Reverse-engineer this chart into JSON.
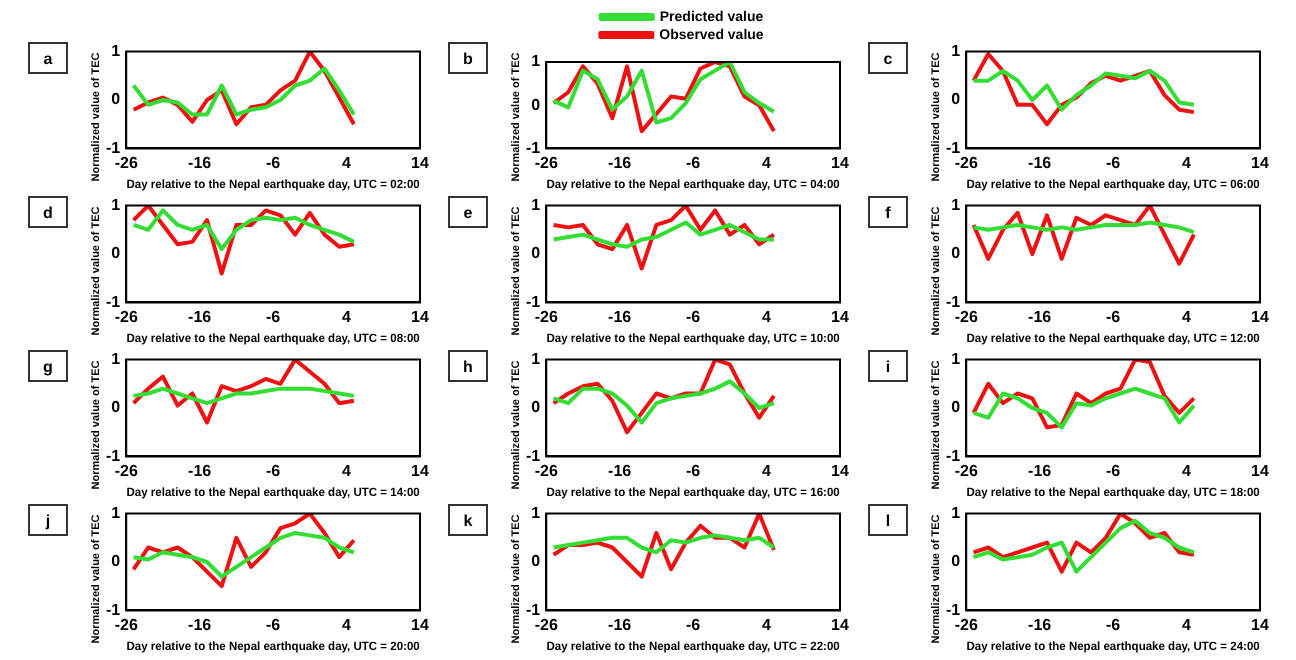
{
  "chart_data": [
    {
      "type": "line",
      "title": "a",
      "xlabel": "Day relative to the Nepal earthquake day, UTC = 02:00",
      "ylabel": "Normalized value of TEC",
      "x": [
        -25,
        -23,
        -21,
        -19,
        -17,
        -15,
        -13,
        -11,
        -9,
        -7,
        -5,
        -3,
        -1,
        1,
        3,
        5
      ],
      "xlim": [
        -26,
        14
      ],
      "xticks": [
        -26,
        -16,
        -6,
        4,
        14
      ],
      "ylim": [
        -1,
        1
      ],
      "yticks": [
        -1,
        0,
        1
      ],
      "legend": false,
      "series": [
        {
          "color": "#33dd33",
          "values": [
            0.3,
            -0.1,
            0,
            -0.05,
            -0.3,
            -0.3,
            0.3,
            -0.3,
            -0.2,
            -0.15,
            0,
            0.3,
            0.4,
            0.65,
            0.2,
            -0.3
          ]
        },
        {
          "color": "#ee1111",
          "values": [
            -0.2,
            -0.05,
            0.05,
            -0.1,
            -0.45,
            0,
            0.2,
            -0.5,
            -0.15,
            -0.1,
            0.2,
            0.4,
            1.0,
            0.6,
            0.05,
            -0.5
          ]
        }
      ]
    },
    {
      "type": "line",
      "title": "b",
      "xlabel": "Day relative to the Nepal earthquake day, UTC = 04:00",
      "ylabel": "Normalized value of TEC",
      "x": [
        -25,
        -23,
        -21,
        -19,
        -17,
        -15,
        -13,
        -11,
        -9,
        -7,
        -5,
        -3,
        -1,
        1,
        3,
        5
      ],
      "xlim": [
        -26,
        14
      ],
      "xticks": [
        -26,
        -16,
        -6,
        4,
        14
      ],
      "ylim": [
        -1,
        1
      ],
      "yticks": [
        -1,
        0,
        1
      ],
      "legend": "top",
      "series": [
        {
          "name": "Predicted value",
          "color": "#33dd33",
          "values": [
            0.1,
            -0.05,
            0.8,
            0.6,
            -0.1,
            0.2,
            0.8,
            -0.4,
            -0.3,
            0.05,
            0.6,
            0.8,
            1.0,
            0.3,
            0.05,
            -0.15
          ]
        },
        {
          "name": "Observed value",
          "color": "#ee1111",
          "values": [
            0.05,
            0.3,
            0.9,
            0.5,
            -0.3,
            0.9,
            -0.6,
            -0.2,
            0.2,
            0.15,
            0.85,
            1.0,
            0.9,
            0.2,
            0,
            -0.6
          ]
        }
      ]
    },
    {
      "type": "line",
      "title": "c",
      "xlabel": "Day relative to the Nepal earthquake day, UTC = 06:00",
      "ylabel": "Normalized value of TEC",
      "x": [
        -25,
        -23,
        -21,
        -19,
        -17,
        -15,
        -13,
        -11,
        -9,
        -7,
        -5,
        -3,
        -1,
        1,
        3,
        5
      ],
      "xlim": [
        -26,
        14
      ],
      "xticks": [
        -26,
        -16,
        -6,
        4,
        14
      ],
      "ylim": [
        -1,
        1
      ],
      "yticks": [
        -1,
        0,
        1
      ],
      "legend": false,
      "series": [
        {
          "color": "#33dd33",
          "values": [
            0.4,
            0.4,
            0.6,
            0.4,
            0,
            0.3,
            -0.2,
            0.1,
            0.3,
            0.55,
            0.5,
            0.45,
            0.6,
            0.4,
            -0.05,
            -0.1
          ]
        },
        {
          "color": "#ee1111",
          "values": [
            0.4,
            0.95,
            0.6,
            -0.1,
            -0.1,
            -0.5,
            -0.1,
            0.05,
            0.35,
            0.5,
            0.4,
            0.5,
            0.6,
            0.1,
            -0.2,
            -0.25
          ]
        }
      ]
    },
    {
      "type": "line",
      "title": "d",
      "xlabel": "Day relative to the Nepal earthquake day, UTC = 08:00",
      "ylabel": "Normalized value of TEC",
      "x": [
        -25,
        -23,
        -21,
        -19,
        -17,
        -15,
        -13,
        -11,
        -9,
        -7,
        -5,
        -3,
        -1,
        1,
        3,
        5
      ],
      "xlim": [
        -26,
        14
      ],
      "xticks": [
        -26,
        -16,
        -6,
        4,
        14
      ],
      "ylim": [
        -1,
        1
      ],
      "yticks": [
        -1,
        0,
        1
      ],
      "legend": false,
      "series": [
        {
          "color": "#33dd33",
          "values": [
            0.6,
            0.5,
            0.9,
            0.6,
            0.5,
            0.6,
            0.1,
            0.5,
            0.7,
            0.75,
            0.7,
            0.75,
            0.6,
            0.5,
            0.4,
            0.25
          ]
        },
        {
          "color": "#ee1111",
          "values": [
            0.7,
            1.0,
            0.6,
            0.2,
            0.25,
            0.7,
            -0.4,
            0.6,
            0.6,
            0.9,
            0.8,
            0.4,
            0.85,
            0.4,
            0.15,
            0.2
          ]
        }
      ]
    },
    {
      "type": "line",
      "title": "e",
      "xlabel": "Day relative to the Nepal earthquake day, UTC = 10:00",
      "ylabel": "Normalized value of TEC",
      "x": [
        -25,
        -23,
        -21,
        -19,
        -17,
        -15,
        -13,
        -11,
        -9,
        -7,
        -5,
        -3,
        -1,
        1,
        3,
        5
      ],
      "xlim": [
        -26,
        14
      ],
      "xticks": [
        -26,
        -16,
        -6,
        4,
        14
      ],
      "ylim": [
        -1,
        1
      ],
      "yticks": [
        -1,
        0,
        1
      ],
      "legend": false,
      "series": [
        {
          "color": "#33dd33",
          "values": [
            0.3,
            0.35,
            0.4,
            0.3,
            0.2,
            0.15,
            0.3,
            0.35,
            0.5,
            0.65,
            0.4,
            0.5,
            0.6,
            0.45,
            0.3,
            0.3
          ]
        },
        {
          "color": "#ee1111",
          "values": [
            0.6,
            0.55,
            0.6,
            0.2,
            0.1,
            0.6,
            -0.3,
            0.6,
            0.7,
            1.0,
            0.5,
            0.9,
            0.4,
            0.6,
            0.2,
            0.4
          ]
        }
      ]
    },
    {
      "type": "line",
      "title": "f",
      "xlabel": "Day relative to the Nepal earthquake day, UTC = 12:00",
      "ylabel": "Normalized value of TEC",
      "x": [
        -25,
        -23,
        -21,
        -19,
        -17,
        -15,
        -13,
        -11,
        -9,
        -7,
        -5,
        -3,
        -1,
        1,
        3,
        5
      ],
      "xlim": [
        -26,
        14
      ],
      "xticks": [
        -26,
        -16,
        -6,
        4,
        14
      ],
      "ylim": [
        -1,
        1
      ],
      "yticks": [
        -1,
        0,
        1
      ],
      "legend": false,
      "series": [
        {
          "color": "#33dd33",
          "values": [
            0.55,
            0.5,
            0.55,
            0.6,
            0.55,
            0.5,
            0.55,
            0.5,
            0.55,
            0.6,
            0.6,
            0.6,
            0.65,
            0.6,
            0.55,
            0.45
          ]
        },
        {
          "color": "#ee1111",
          "values": [
            0.6,
            -0.1,
            0.5,
            0.85,
            0,
            0.8,
            -0.1,
            0.75,
            0.6,
            0.8,
            0.7,
            0.6,
            1.0,
            0.4,
            -0.2,
            0.4
          ]
        }
      ]
    },
    {
      "type": "line",
      "title": "g",
      "xlabel": "Day relative to the Nepal earthquake day, UTC = 14:00",
      "ylabel": "Normalized value of TEC",
      "x": [
        -25,
        -23,
        -21,
        -19,
        -17,
        -15,
        -13,
        -11,
        -9,
        -7,
        -5,
        -3,
        -1,
        1,
        3,
        5
      ],
      "xlim": [
        -26,
        14
      ],
      "xticks": [
        -26,
        -16,
        -6,
        4,
        14
      ],
      "ylim": [
        -1,
        1
      ],
      "yticks": [
        -1,
        0,
        1
      ],
      "legend": false,
      "series": [
        {
          "color": "#33dd33",
          "values": [
            0.25,
            0.3,
            0.4,
            0.3,
            0.2,
            0.1,
            0.2,
            0.3,
            0.3,
            0.35,
            0.4,
            0.4,
            0.4,
            0.35,
            0.3,
            0.25
          ]
        },
        {
          "color": "#ee1111",
          "values": [
            0.1,
            0.4,
            0.65,
            0.05,
            0.3,
            -0.3,
            0.45,
            0.35,
            0.45,
            0.6,
            0.5,
            1.0,
            0.75,
            0.5,
            0.1,
            0.15
          ]
        }
      ]
    },
    {
      "type": "line",
      "title": "h",
      "xlabel": "Day relative to the Nepal earthquake day, UTC = 16:00",
      "ylabel": "Normalized value of TEC",
      "x": [
        -25,
        -23,
        -21,
        -19,
        -17,
        -15,
        -13,
        -11,
        -9,
        -7,
        -5,
        -3,
        -1,
        1,
        3,
        5
      ],
      "xlim": [
        -26,
        14
      ],
      "xticks": [
        -26,
        -16,
        -6,
        4,
        14
      ],
      "ylim": [
        -1,
        1
      ],
      "yticks": [
        -1,
        0,
        1
      ],
      "legend": false,
      "series": [
        {
          "color": "#33dd33",
          "values": [
            0.2,
            0.1,
            0.4,
            0.4,
            0.3,
            0.05,
            -0.3,
            0.1,
            0.2,
            0.25,
            0.3,
            0.4,
            0.55,
            0.3,
            0,
            0.1
          ]
        },
        {
          "color": "#ee1111",
          "values": [
            0.1,
            0.3,
            0.45,
            0.5,
            0.15,
            -0.5,
            -0.1,
            0.3,
            0.2,
            0.3,
            0.3,
            1.0,
            0.9,
            0.3,
            -0.2,
            0.25
          ]
        }
      ]
    },
    {
      "type": "line",
      "title": "i",
      "xlabel": "Day relative to the Nepal earthquake day, UTC = 18:00",
      "ylabel": "Normalized value of TEC",
      "x": [
        -25,
        -23,
        -21,
        -19,
        -17,
        -15,
        -13,
        -11,
        -9,
        -7,
        -5,
        -3,
        -1,
        1,
        3,
        5
      ],
      "xlim": [
        -26,
        14
      ],
      "xticks": [
        -26,
        -16,
        -6,
        4,
        14
      ],
      "ylim": [
        -1,
        1
      ],
      "yticks": [
        -1,
        0,
        1
      ],
      "legend": false,
      "series": [
        {
          "color": "#33dd33",
          "values": [
            -0.1,
            -0.2,
            0.3,
            0.2,
            0,
            -0.1,
            -0.4,
            0.1,
            0.05,
            0.2,
            0.3,
            0.4,
            0.3,
            0.2,
            -0.3,
            0.05
          ]
        },
        {
          "color": "#ee1111",
          "values": [
            -0.1,
            0.5,
            0.1,
            0.3,
            0.2,
            -0.4,
            -0.35,
            0.3,
            0.1,
            0.3,
            0.4,
            1.0,
            0.95,
            0.25,
            -0.1,
            0.2
          ]
        }
      ]
    },
    {
      "type": "line",
      "title": "j",
      "xlabel": "Day relative to the Nepal earthquake day, UTC = 20:00",
      "ylabel": "Normalized value of TEC",
      "x": [
        -25,
        -23,
        -21,
        -19,
        -17,
        -15,
        -13,
        -11,
        -9,
        -7,
        -5,
        -3,
        -1,
        1,
        3,
        5
      ],
      "xlim": [
        -26,
        14
      ],
      "xticks": [
        -26,
        -16,
        -6,
        4,
        14
      ],
      "ylim": [
        -1,
        1
      ],
      "yticks": [
        -1,
        0,
        1
      ],
      "legend": false,
      "series": [
        {
          "color": "#33dd33",
          "values": [
            0.1,
            0.05,
            0.2,
            0.15,
            0.1,
            0,
            -0.3,
            -0.1,
            0.1,
            0.3,
            0.5,
            0.6,
            0.55,
            0.5,
            0.3,
            0.2
          ]
        },
        {
          "color": "#ee1111",
          "values": [
            -0.15,
            0.3,
            0.2,
            0.3,
            0.1,
            -0.2,
            -0.5,
            0.5,
            -0.1,
            0.2,
            0.7,
            0.8,
            1.0,
            0.6,
            0.1,
            0.45
          ]
        }
      ]
    },
    {
      "type": "line",
      "title": "k",
      "xlabel": "Day relative to the Nepal earthquake day, UTC = 22:00",
      "ylabel": "Normalized value of TEC",
      "x": [
        -25,
        -23,
        -21,
        -19,
        -17,
        -15,
        -13,
        -11,
        -9,
        -7,
        -5,
        -3,
        -1,
        1,
        3,
        5
      ],
      "xlim": [
        -26,
        14
      ],
      "xticks": [
        -26,
        -16,
        -6,
        4,
        14
      ],
      "ylim": [
        -1,
        1
      ],
      "yticks": [
        -1,
        0,
        1
      ],
      "legend": false,
      "series": [
        {
          "color": "#33dd33",
          "values": [
            0.3,
            0.35,
            0.4,
            0.45,
            0.5,
            0.5,
            0.3,
            0.2,
            0.45,
            0.4,
            0.5,
            0.55,
            0.5,
            0.45,
            0.5,
            0.3
          ]
        },
        {
          "color": "#ee1111",
          "values": [
            0.15,
            0.35,
            0.35,
            0.4,
            0.3,
            0,
            -0.3,
            0.6,
            -0.15,
            0.4,
            0.75,
            0.5,
            0.5,
            0.3,
            1.0,
            0.25
          ]
        }
      ]
    },
    {
      "type": "line",
      "title": "l",
      "xlabel": "Day relative to the Nepal earthquake day, UTC = 24:00",
      "ylabel": "Normalized value of TEC",
      "x": [
        -25,
        -23,
        -21,
        -19,
        -17,
        -15,
        -13,
        -11,
        -9,
        -7,
        -5,
        -3,
        -1,
        1,
        3,
        5
      ],
      "xlim": [
        -26,
        14
      ],
      "xticks": [
        -26,
        -16,
        -6,
        4,
        14
      ],
      "ylim": [
        -1,
        1
      ],
      "yticks": [
        -1,
        0,
        1
      ],
      "legend": false,
      "series": [
        {
          "color": "#33dd33",
          "values": [
            0.1,
            0.2,
            0.05,
            0.1,
            0.15,
            0.3,
            0.4,
            -0.2,
            0.1,
            0.4,
            0.7,
            0.85,
            0.6,
            0.5,
            0.3,
            0.2
          ]
        },
        {
          "color": "#ee1111",
          "values": [
            0.2,
            0.3,
            0.1,
            0.2,
            0.3,
            0.4,
            -0.2,
            0.4,
            0.2,
            0.5,
            1.0,
            0.8,
            0.5,
            0.6,
            0.2,
            0.15
          ]
        }
      ]
    }
  ]
}
